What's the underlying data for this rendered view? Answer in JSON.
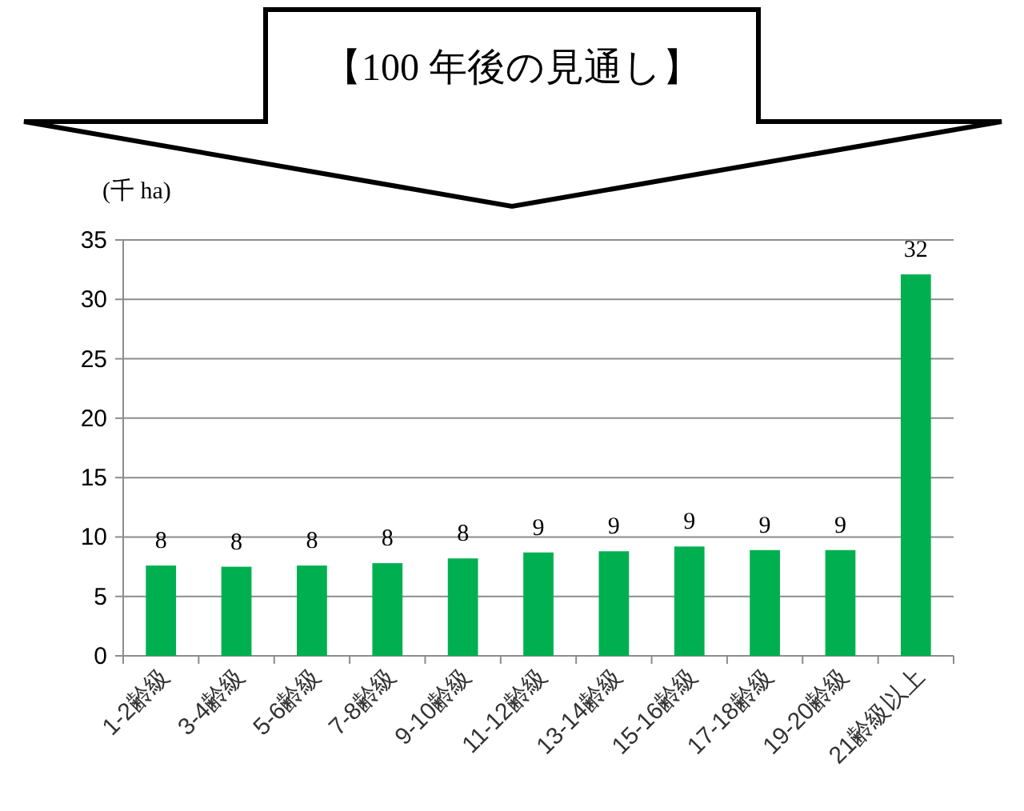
{
  "chart_data": {
    "type": "bar",
    "title": "【100 年後の見通し】",
    "ylabel": "(千 ha)",
    "categories": [
      "1-2齢級",
      "3-4齢級",
      "5-6齢級",
      "7-8齢級",
      "9-10齢級",
      "11-12齢級",
      "13-14齢級",
      "15-16齢級",
      "17-18齢級",
      "19-20齢級",
      "21齢級以上"
    ],
    "values": [
      7.6,
      7.5,
      7.6,
      7.8,
      8.2,
      8.7,
      8.8,
      9.2,
      8.9,
      8.9,
      32.1
    ],
    "value_labels": [
      "8",
      "8",
      "8",
      "8",
      "8",
      "9",
      "9",
      "9",
      "9",
      "9",
      "32"
    ],
    "color": "#00b050",
    "ylim": [
      0,
      35
    ],
    "yticks": [
      0,
      5,
      10,
      15,
      20,
      25,
      30,
      35
    ],
    "grid": "y"
  }
}
